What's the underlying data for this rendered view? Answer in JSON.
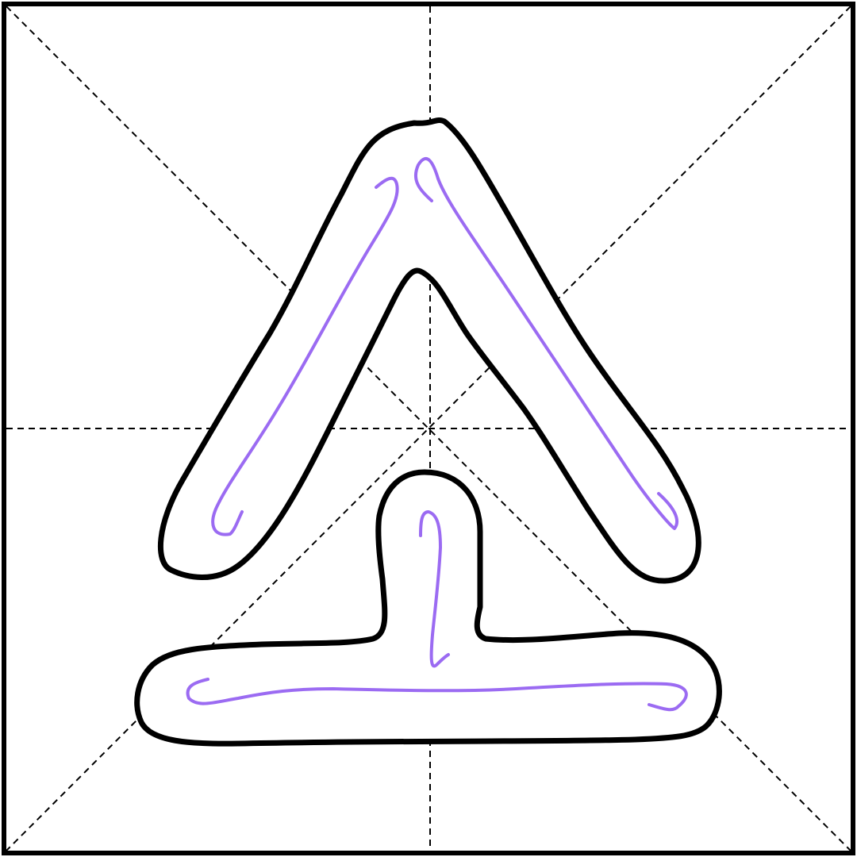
{
  "character": {
    "glyph": "仝",
    "components": [
      "人",
      "工"
    ]
  },
  "grid": {
    "style": "米字格",
    "guides": [
      "vertical",
      "horizontal",
      "diagonal-main",
      "diagonal-anti"
    ],
    "guide_style": "dashed"
  },
  "strokes": [
    {
      "name": "pie",
      "order": 1
    },
    {
      "name": "na",
      "order": 2
    },
    {
      "name": "shu",
      "order": 3
    },
    {
      "name": "heng",
      "order": 4
    }
  ],
  "colors": {
    "frame": "#000000",
    "outline": "#000000",
    "guide": "#000000",
    "centerline": "#9b6bf2",
    "background": "#ffffff"
  }
}
